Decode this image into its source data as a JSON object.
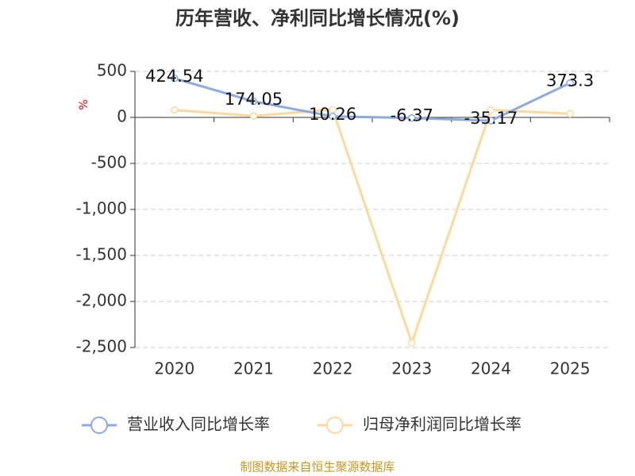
{
  "chart_data": {
    "type": "line",
    "title": "历年营收、净利同比增长情况(%)",
    "y_label": "%",
    "source": "制图数据来自恒生聚源数据库",
    "categories": [
      "2020",
      "2021",
      "2022",
      "2023",
      "2024",
      "2025"
    ],
    "series": [
      {
        "name": "营业收入同比增长率",
        "color": "#8eaadb",
        "values": [
          424.54,
          174.05,
          10.26,
          -6.37,
          -35.17,
          373.3
        ],
        "show_labels": true
      },
      {
        "name": "归母净利润同比增长率",
        "color": "#fad99b",
        "values": [
          80,
          15,
          85,
          -2450,
          80,
          40
        ],
        "show_labels": false
      }
    ],
    "ylim": [
      -2500,
      500
    ],
    "yticks": [
      500,
      0,
      -500,
      {
        "value": -1000,
        "label": "-1,000"
      },
      {
        "value": -1500,
        "label": "-1,500"
      },
      {
        "value": -2000,
        "label": "-2,000"
      },
      {
        "value": -2500,
        "label": "-2,500"
      }
    ],
    "grid": true
  }
}
